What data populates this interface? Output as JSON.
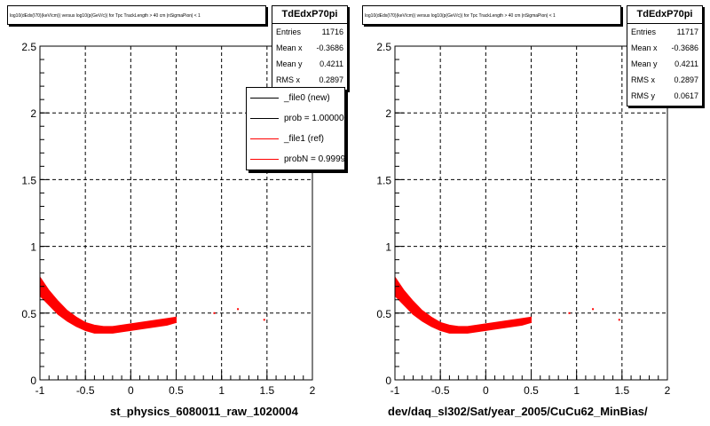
{
  "pads": [
    {
      "id": "left",
      "title": "log10(dEdx(I70)(keV/cm)) versus log10(p(GeV/c)) for Tpc TrackLength > 40 cm |nSigmaPion| < 1",
      "stats": {
        "name": "TdEdxP70pi",
        "rows": [
          {
            "label": "Entries",
            "value": "11716"
          },
          {
            "label": "Mean x",
            "value": "-0.3686"
          },
          {
            "label": "Mean y",
            "value": "0.4211"
          },
          {
            "label": "RMS x",
            "value": "0.2897"
          }
        ]
      },
      "legend": [
        {
          "label": "_file0 (new)",
          "color": "#000000"
        },
        {
          "label": "prob = 1.000000",
          "color": "#000000"
        },
        {
          "label": "_file1 (ref)",
          "color": "#ff0000"
        },
        {
          "label": "probN = 0.99998",
          "color": "#ff0000"
        }
      ],
      "xlabel": "st_physics_6080011_raw_1020004"
    },
    {
      "id": "right",
      "title": "log10(dEdx(I70)(keV/cm)) versus log10(p(GeV/c)) for Tpc TrackLength > 40 cm |nSigmaPion| < 1",
      "stats": {
        "name": "TdEdxP70pi",
        "rows": [
          {
            "label": "Entries",
            "value": "11717"
          },
          {
            "label": "Mean x",
            "value": "-0.3686"
          },
          {
            "label": "Mean y",
            "value": "0.4211"
          },
          {
            "label": "RMS x",
            "value": "0.2897"
          },
          {
            "label": "RMS y",
            "value": "0.0617"
          }
        ]
      },
      "legend": [],
      "xlabel": "dev/daq_sl302/Sat/year_2005/CuCu62_MinBias/"
    }
  ],
  "chart_data": [
    {
      "type": "scatter",
      "title": "log10(dEdx(I70)(keV/cm)) versus log10(p(GeV/c)) for Tpc TrackLength > 40 cm |nSigmaPion| < 1",
      "xlabel": "st_physics_6080011_raw_1020004",
      "ylabel": "",
      "xlim": [
        -1,
        2
      ],
      "ylim": [
        0,
        2.5
      ],
      "x_ticks": [
        "-1",
        "-0.5",
        "0",
        "0.5",
        "1",
        "1.5",
        "2"
      ],
      "y_ticks": [
        "0",
        "0.5",
        "1",
        "1.5",
        "2",
        "2.5"
      ],
      "grid": true,
      "series_color": "#ff0000",
      "band": {
        "x": [
          -1.0,
          -0.9,
          -0.8,
          -0.7,
          -0.6,
          -0.5,
          -0.4,
          -0.3,
          -0.2,
          -0.1,
          0.0,
          0.1,
          0.2,
          0.3,
          0.4,
          0.5
        ],
        "y_low": [
          0.63,
          0.56,
          0.49,
          0.44,
          0.4,
          0.37,
          0.35,
          0.35,
          0.35,
          0.36,
          0.37,
          0.38,
          0.39,
          0.4,
          0.41,
          0.43
        ],
        "y_high": [
          0.77,
          0.67,
          0.59,
          0.52,
          0.47,
          0.43,
          0.41,
          0.4,
          0.4,
          0.41,
          0.42,
          0.43,
          0.44,
          0.45,
          0.46,
          0.47
        ]
      },
      "outliers": [
        [
          0.92,
          0.5
        ],
        [
          1.18,
          0.53
        ],
        [
          1.47,
          0.45
        ]
      ]
    },
    {
      "type": "scatter",
      "title": "log10(dEdx(I70)(keV/cm)) versus log10(p(GeV/c)) for Tpc TrackLength > 40 cm |nSigmaPion| < 1",
      "xlabel": "dev/daq_sl302/Sat/year_2005/CuCu62_MinBias/",
      "ylabel": "",
      "xlim": [
        -1,
        2
      ],
      "ylim": [
        0,
        2.5
      ],
      "x_ticks": [
        "-1",
        "-0.5",
        "0",
        "0.5",
        "1",
        "1.5",
        "2"
      ],
      "y_ticks": [
        "0",
        "0.5",
        "1",
        "1.5",
        "2",
        "2.5"
      ],
      "grid": true,
      "series_color": "#ff0000",
      "band": {
        "x": [
          -1.0,
          -0.9,
          -0.8,
          -0.7,
          -0.6,
          -0.5,
          -0.4,
          -0.3,
          -0.2,
          -0.1,
          0.0,
          0.1,
          0.2,
          0.3,
          0.4,
          0.5
        ],
        "y_low": [
          0.63,
          0.56,
          0.49,
          0.44,
          0.4,
          0.37,
          0.35,
          0.35,
          0.35,
          0.36,
          0.37,
          0.38,
          0.39,
          0.4,
          0.41,
          0.43
        ],
        "y_high": [
          0.77,
          0.67,
          0.59,
          0.52,
          0.47,
          0.43,
          0.41,
          0.4,
          0.4,
          0.41,
          0.42,
          0.43,
          0.44,
          0.45,
          0.46,
          0.47
        ]
      },
      "outliers": [
        [
          0.92,
          0.5
        ],
        [
          1.18,
          0.53
        ],
        [
          1.47,
          0.45
        ]
      ]
    }
  ]
}
